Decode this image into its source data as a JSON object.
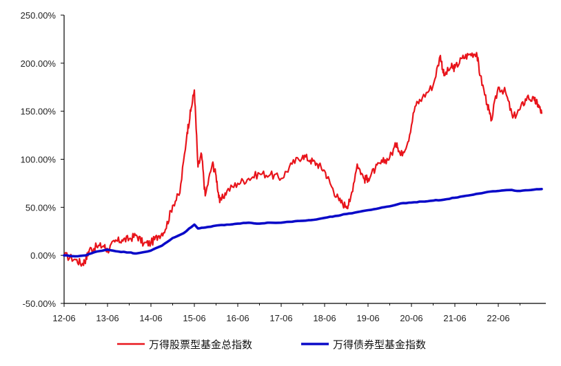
{
  "chart_data": {
    "type": "line",
    "title": "",
    "xlabel": "",
    "ylabel": "",
    "x_tick_labels": [
      "12-06",
      "13-06",
      "14-06",
      "15-06",
      "16-06",
      "17-06",
      "18-06",
      "19-06",
      "20-06",
      "21-06",
      "22-06"
    ],
    "y_tick_labels": [
      "-50.00%",
      "0.00%",
      "50.00%",
      "100.00%",
      "150.00%",
      "200.00%",
      "250.00%"
    ],
    "ylim": [
      -50,
      250
    ],
    "y_unit": "%",
    "grid": false,
    "legend_position": "bottom-center",
    "series": [
      {
        "name": "万得股票型基金总指数",
        "color": "#e8141b",
        "points": [
          [
            "12-06",
            0
          ],
          [
            "12-09",
            -4
          ],
          [
            "12-11",
            -9
          ],
          [
            "12-12",
            -4
          ],
          [
            "13-01",
            6
          ],
          [
            "13-03",
            9
          ],
          [
            "13-05",
            10
          ],
          [
            "13-06",
            5
          ],
          [
            "13-08",
            14
          ],
          [
            "13-10",
            16
          ],
          [
            "13-12",
            17
          ],
          [
            "14-02",
            21
          ],
          [
            "14-04",
            12
          ],
          [
            "14-06",
            13
          ],
          [
            "14-08",
            20
          ],
          [
            "14-10",
            27
          ],
          [
            "14-12",
            52
          ],
          [
            "15-02",
            65
          ],
          [
            "15-04",
            128
          ],
          [
            "15-05",
            150
          ],
          [
            "15-06",
            172
          ],
          [
            "15-07",
            92
          ],
          [
            "15-08",
            105
          ],
          [
            "15-09",
            62
          ],
          [
            "15-11",
            96
          ],
          [
            "15-12",
            83
          ],
          [
            "16-01",
            55
          ],
          [
            "16-03",
            67
          ],
          [
            "16-06",
            75
          ],
          [
            "16-09",
            80
          ],
          [
            "16-12",
            85
          ],
          [
            "17-03",
            84
          ],
          [
            "17-06",
            80
          ],
          [
            "17-09",
            95
          ],
          [
            "17-12",
            104
          ],
          [
            "18-02",
            99
          ],
          [
            "18-04",
            95
          ],
          [
            "18-06",
            88
          ],
          [
            "18-08",
            71
          ],
          [
            "18-10",
            57
          ],
          [
            "18-12",
            51
          ],
          [
            "19-01",
            56
          ],
          [
            "19-03",
            95
          ],
          [
            "19-05",
            79
          ],
          [
            "19-06",
            80
          ],
          [
            "19-08",
            90
          ],
          [
            "19-10",
            97
          ],
          [
            "19-12",
            102
          ],
          [
            "20-02",
            117
          ],
          [
            "20-03",
            104
          ],
          [
            "20-05",
            118
          ],
          [
            "20-07",
            155
          ],
          [
            "20-09",
            164
          ],
          [
            "20-12",
            177
          ],
          [
            "21-02",
            208
          ],
          [
            "21-03",
            187
          ],
          [
            "21-05",
            196
          ],
          [
            "21-06",
            195
          ],
          [
            "21-08",
            205
          ],
          [
            "21-10",
            209
          ],
          [
            "21-12",
            211
          ],
          [
            "22-01",
            187
          ],
          [
            "22-03",
            157
          ],
          [
            "22-04",
            140
          ],
          [
            "22-06",
            175
          ],
          [
            "22-08",
            170
          ],
          [
            "22-10",
            143
          ],
          [
            "22-12",
            152
          ],
          [
            "23-02",
            165
          ],
          [
            "23-04",
            161
          ],
          [
            "23-05",
            157
          ],
          [
            "23-06",
            148
          ]
        ]
      },
      {
        "name": "万得债券型基金指数",
        "color": "#0a0ac8",
        "points": [
          [
            "12-06",
            0
          ],
          [
            "12-09",
            -1
          ],
          [
            "12-12",
            0
          ],
          [
            "13-03",
            4
          ],
          [
            "13-06",
            6
          ],
          [
            "13-09",
            4
          ],
          [
            "13-12",
            3
          ],
          [
            "14-02",
            2
          ],
          [
            "14-06",
            5
          ],
          [
            "14-09",
            10
          ],
          [
            "14-12",
            18
          ],
          [
            "15-03",
            23
          ],
          [
            "15-06",
            32
          ],
          [
            "15-07",
            28
          ],
          [
            "15-09",
            29
          ],
          [
            "15-12",
            31
          ],
          [
            "16-03",
            32
          ],
          [
            "16-06",
            33
          ],
          [
            "16-09",
            34
          ],
          [
            "16-12",
            33
          ],
          [
            "17-03",
            34
          ],
          [
            "17-06",
            34
          ],
          [
            "17-09",
            35
          ],
          [
            "17-12",
            36
          ],
          [
            "18-03",
            37
          ],
          [
            "18-06",
            39
          ],
          [
            "18-09",
            41
          ],
          [
            "18-12",
            43
          ],
          [
            "19-03",
            45
          ],
          [
            "19-06",
            47
          ],
          [
            "19-09",
            49
          ],
          [
            "19-12",
            51
          ],
          [
            "20-03",
            54
          ],
          [
            "20-06",
            55
          ],
          [
            "20-09",
            56
          ],
          [
            "20-12",
            57
          ],
          [
            "21-03",
            58
          ],
          [
            "21-06",
            60
          ],
          [
            "21-09",
            62
          ],
          [
            "21-12",
            64
          ],
          [
            "22-03",
            66
          ],
          [
            "22-06",
            67
          ],
          [
            "22-09",
            68
          ],
          [
            "22-12",
            67
          ],
          [
            "23-03",
            68
          ],
          [
            "23-06",
            69
          ]
        ]
      }
    ]
  }
}
